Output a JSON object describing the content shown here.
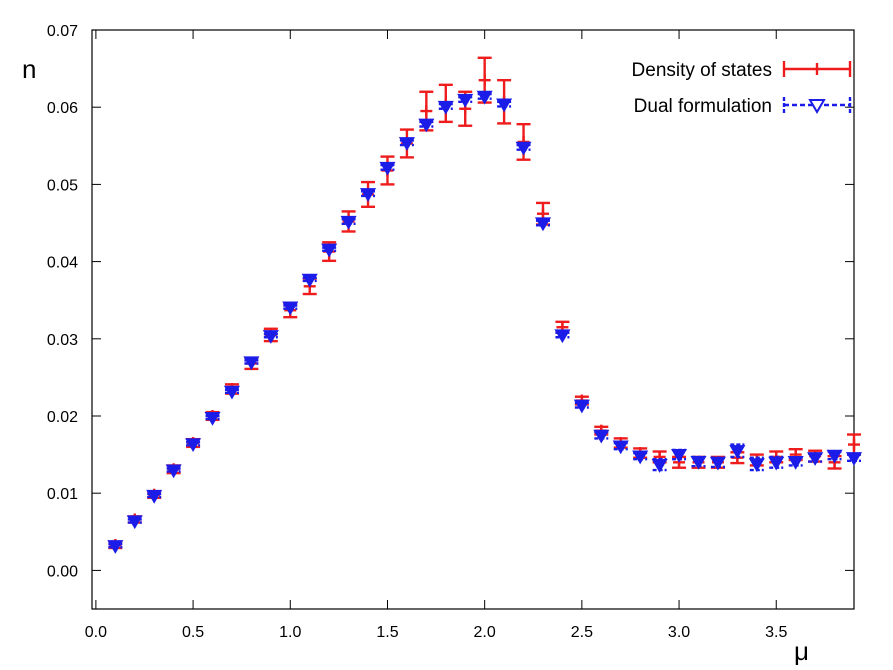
{
  "chart_data": {
    "type": "scatter",
    "title": "",
    "xlabel": "μ",
    "ylabel": "n",
    "xlim": [
      -0.02,
      3.9
    ],
    "ylim": [
      -0.005,
      0.07
    ],
    "xticks": [
      "0.0",
      "0.5",
      "1.0",
      "1.5",
      "2.0",
      "2.5",
      "3.0",
      "3.5"
    ],
    "xtick_values": [
      0.0,
      0.5,
      1.0,
      1.5,
      2.0,
      2.5,
      3.0,
      3.5
    ],
    "yticks": [
      "0.00",
      "0.01",
      "0.02",
      "0.03",
      "0.04",
      "0.05",
      "0.06",
      "0.07"
    ],
    "ytick_values": [
      0.0,
      0.01,
      0.02,
      0.03,
      0.04,
      0.05,
      0.06,
      0.07
    ],
    "grid": false,
    "legend_position": "top-right",
    "series": [
      {
        "name": "Density of states",
        "color": "#ee1c1c",
        "marker": "plus-errorbar",
        "x": [
          0.1,
          0.2,
          0.3,
          0.4,
          0.5,
          0.6,
          0.7,
          0.8,
          0.9,
          1.0,
          1.1,
          1.2,
          1.3,
          1.4,
          1.5,
          1.6,
          1.7,
          1.8,
          1.9,
          2.0,
          2.1,
          2.2,
          2.3,
          2.4,
          2.5,
          2.6,
          2.7,
          2.8,
          2.9,
          3.0,
          3.1,
          3.2,
          3.3,
          3.4,
          3.5,
          3.6,
          3.7,
          3.8,
          3.9
        ],
        "y": [
          0.0033,
          0.0066,
          0.0098,
          0.0131,
          0.0165,
          0.02,
          0.0235,
          0.0268,
          0.0305,
          0.0337,
          0.0368,
          0.0413,
          0.0452,
          0.0487,
          0.0518,
          0.0553,
          0.0595,
          0.0605,
          0.0598,
          0.0635,
          0.0607,
          0.0555,
          0.0462,
          0.0315,
          0.022,
          0.0181,
          0.0165,
          0.0152,
          0.0147,
          0.014,
          0.014,
          0.014,
          0.0146,
          0.0143,
          0.0147,
          0.015,
          0.0148,
          0.014,
          0.0163
        ],
        "err": [
          0.0004,
          0.0004,
          0.0004,
          0.0005,
          0.0005,
          0.0005,
          0.0006,
          0.0007,
          0.0008,
          0.0009,
          0.001,
          0.0012,
          0.0013,
          0.0016,
          0.0018,
          0.0018,
          0.0025,
          0.0024,
          0.0022,
          0.0029,
          0.0028,
          0.0023,
          0.0014,
          0.0007,
          0.0005,
          0.0005,
          0.0006,
          0.0006,
          0.0007,
          0.0007,
          0.0007,
          0.0007,
          0.0007,
          0.0007,
          0.0007,
          0.0007,
          0.0007,
          0.0008,
          0.0013
        ]
      },
      {
        "name": "Dual formulation",
        "color": "#1c1ce8",
        "marker": "triangle-down",
        "x": [
          0.1,
          0.2,
          0.3,
          0.4,
          0.5,
          0.6,
          0.7,
          0.8,
          0.9,
          1.0,
          1.1,
          1.2,
          1.3,
          1.4,
          1.5,
          1.6,
          1.7,
          1.8,
          1.9,
          2.0,
          2.1,
          2.2,
          2.3,
          2.4,
          2.5,
          2.6,
          2.7,
          2.8,
          2.9,
          3.0,
          3.1,
          3.2,
          3.3,
          3.4,
          3.5,
          3.6,
          3.7,
          3.8,
          3.9
        ],
        "y": [
          0.0032,
          0.0064,
          0.0097,
          0.013,
          0.0164,
          0.0198,
          0.0232,
          0.027,
          0.0304,
          0.0341,
          0.0377,
          0.0416,
          0.0452,
          0.0488,
          0.0522,
          0.0554,
          0.0578,
          0.0601,
          0.061,
          0.0614,
          0.0604,
          0.0548,
          0.045,
          0.0305,
          0.0214,
          0.0175,
          0.0161,
          0.0148,
          0.0137,
          0.015,
          0.0141,
          0.014,
          0.0155,
          0.0138,
          0.014,
          0.0141,
          0.0146,
          0.0149,
          0.0146
        ],
        "err": [
          0.0002,
          0.0002,
          0.0002,
          0.0002,
          0.0002,
          0.0002,
          0.0002,
          0.0002,
          0.0002,
          0.0002,
          0.0002,
          0.0002,
          0.0003,
          0.0003,
          0.0003,
          0.0003,
          0.0003,
          0.0003,
          0.0003,
          0.0003,
          0.0003,
          0.0003,
          0.0003,
          0.0003,
          0.0003,
          0.0004,
          0.0004,
          0.0004,
          0.0007,
          0.0006,
          0.0006,
          0.0006,
          0.0008,
          0.0008,
          0.0007,
          0.0005,
          0.0005,
          0.0005,
          0.0004
        ]
      }
    ]
  }
}
